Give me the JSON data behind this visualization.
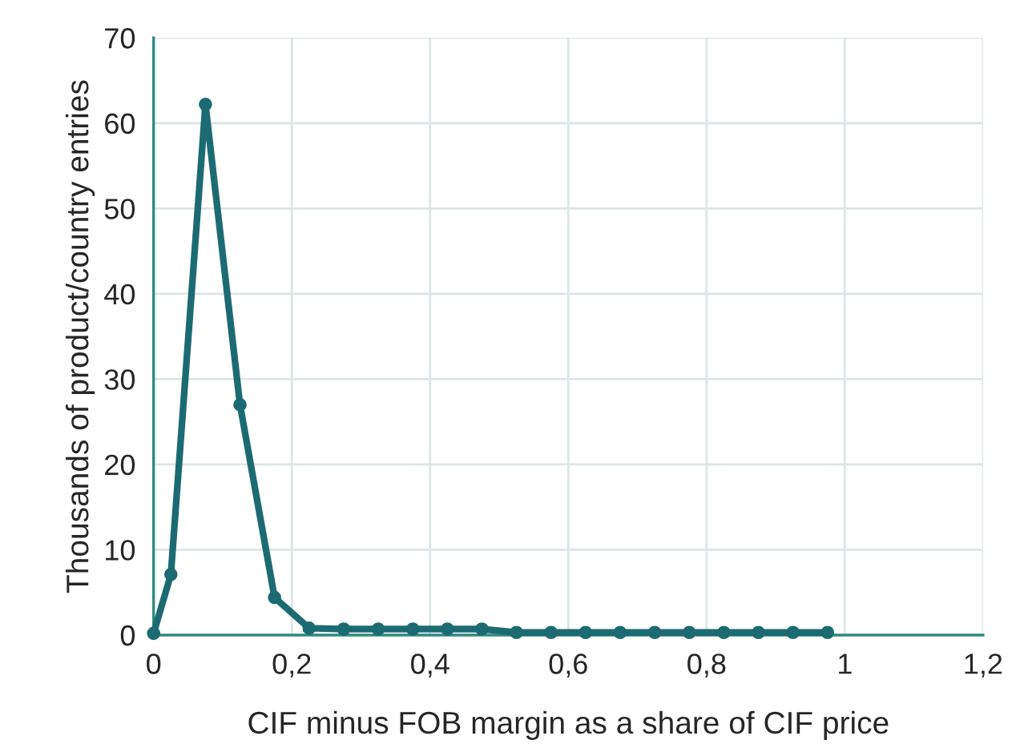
{
  "chart_data": {
    "type": "line",
    "xlabel": "CIF minus FOB margin as a share of CIF price",
    "ylabel": "Thousands of product/country entries",
    "x": [
      0,
      0.025,
      0.075,
      0.125,
      0.175,
      0.225,
      0.275,
      0.325,
      0.375,
      0.425,
      0.475,
      0.525,
      0.575,
      0.625,
      0.675,
      0.725,
      0.775,
      0.825,
      0.875,
      0.925,
      0.975
    ],
    "series": [
      {
        "color": "#1c6b72",
        "values": [
          0.2,
          7.1,
          62.2,
          27,
          4.4,
          0.8,
          0.7,
          0.7,
          0.7,
          0.7,
          0.7,
          0.3,
          0.3,
          0.3,
          0.3,
          0.3,
          0.3,
          0.3,
          0.3,
          0.3,
          0.3
        ]
      }
    ],
    "xlim": [
      0,
      1.2
    ],
    "ylim": [
      0,
      70
    ],
    "xticks": [
      {
        "value": 0,
        "label": "0"
      },
      {
        "value": 0.2,
        "label": "0,2"
      },
      {
        "value": 0.4,
        "label": "0,4"
      },
      {
        "value": 0.6,
        "label": "0,6"
      },
      {
        "value": 0.8,
        "label": "0,8"
      },
      {
        "value": 1,
        "label": "1"
      },
      {
        "value": 1.2,
        "label": "1,2"
      }
    ],
    "yticks": [
      0,
      10,
      20,
      30,
      40,
      50,
      60,
      70
    ],
    "grid": true,
    "marker": "circle",
    "line_style": "solid"
  }
}
